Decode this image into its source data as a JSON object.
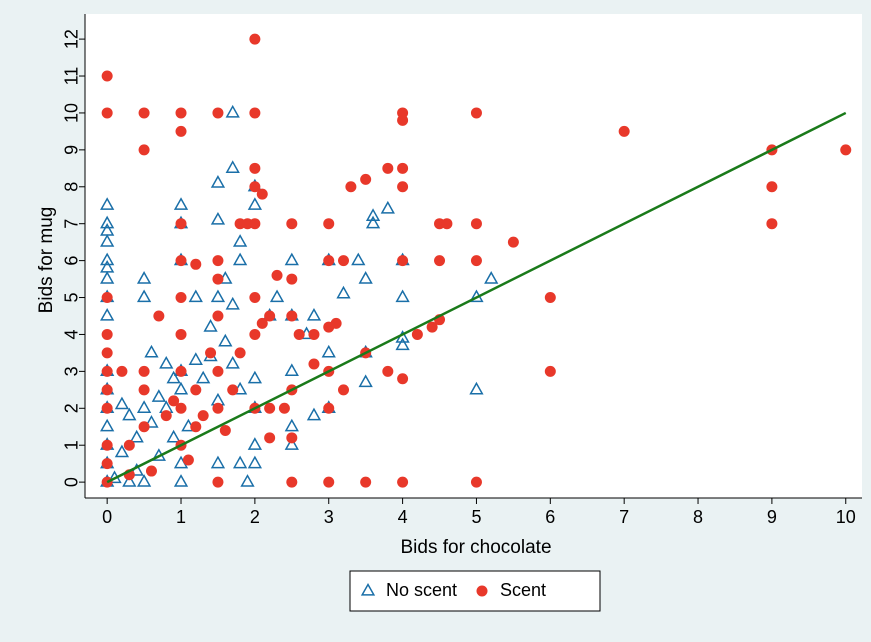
{
  "chart_data": {
    "type": "scatter",
    "x_label": "Bids for chocolate",
    "y_label": "Bids for mug",
    "xlim": [
      -0.3,
      10.22
    ],
    "ylim": [
      -0.43,
      12.68
    ],
    "xticks": [
      0,
      1,
      2,
      3,
      4,
      5,
      6,
      7,
      8,
      9,
      10
    ],
    "yticks": [
      0,
      1,
      2,
      3,
      4,
      5,
      6,
      7,
      8,
      9,
      10,
      11,
      12
    ],
    "grid": false,
    "legend": "bottom",
    "reference_line": {
      "x": [
        0,
        10
      ],
      "y": [
        0,
        10
      ],
      "color": "#1a7a1a"
    },
    "series": [
      {
        "name": "No scent",
        "color": "#1a6fa8",
        "marker": "triangle",
        "x": [
          1.7,
          0,
          0,
          0,
          0,
          0,
          0,
          0,
          0,
          0,
          0,
          0,
          0,
          0,
          0,
          0,
          0,
          1.7,
          1.5,
          2,
          2,
          1.5,
          1,
          1,
          1,
          0.5,
          0.5,
          1.8,
          1.8,
          1.6,
          1.5,
          1.2,
          2.5,
          2.5,
          2.3,
          3,
          3.2,
          3.5,
          3.6,
          3.8,
          3.6,
          4,
          4,
          4,
          4,
          5,
          5.2,
          5,
          3.5,
          3.5,
          3.4,
          3,
          3,
          2.8,
          2.5,
          2.5,
          2.5,
          2,
          2,
          2,
          1.9,
          1.8,
          1.5,
          1,
          1,
          0.5,
          0.3,
          0.1,
          0.2,
          0.4,
          0.6,
          0.8,
          1,
          1,
          1.2,
          1.3,
          1.4,
          1.6,
          1.7,
          1.8,
          2,
          2.2,
          2.8,
          2.7,
          0.5,
          0.7,
          0.9,
          1.1,
          0.3,
          0.2,
          0.7,
          0.4,
          0.6,
          0.8,
          1.4,
          1.7,
          0.9,
          1.5
        ],
        "values": [
          10,
          7.5,
          7,
          6.8,
          6.5,
          6,
          5.8,
          5.5,
          5,
          4.5,
          3,
          2.5,
          2,
          1.5,
          1,
          0.5,
          0,
          8.5,
          8.1,
          8,
          7.5,
          7.1,
          7.5,
          7,
          6,
          5.5,
          5,
          6.5,
          6,
          5.5,
          5,
          5,
          6,
          4.5,
          5,
          6,
          5.1,
          5.5,
          7.2,
          7.4,
          7,
          5,
          3.9,
          3.7,
          6,
          5,
          5.5,
          2.5,
          2.7,
          3.5,
          6,
          3.5,
          2,
          1.8,
          1,
          1.5,
          3,
          2,
          1,
          0.5,
          0,
          0.5,
          0.5,
          0,
          0.5,
          0,
          0,
          0.1,
          0.8,
          1.2,
          1.6,
          2,
          2.5,
          3,
          3.3,
          2.8,
          3.4,
          3.8,
          3.2,
          2.5,
          2.8,
          4.5,
          4.5,
          4,
          2,
          2.3,
          1.2,
          1.5,
          1.8,
          2.1,
          0.7,
          0.3,
          3.5,
          3.2,
          4.2,
          4.8,
          2.8,
          2.2
        ]
      },
      {
        "name": "Scent",
        "color": "#e8382a",
        "marker": "circle",
        "x": [
          0,
          0,
          0.5,
          1,
          1.5,
          2,
          2,
          0.5,
          1,
          4,
          4,
          5,
          7,
          9,
          10,
          9,
          9,
          6,
          6,
          5,
          4,
          3.5,
          3,
          2.5,
          1.5,
          1,
          1.5,
          2,
          2,
          2,
          3,
          3.3,
          3.5,
          3.8,
          4,
          4,
          4,
          4.5,
          4.6,
          5,
          5,
          5.5,
          4.5,
          4.2,
          4.5,
          4,
          3.8,
          4.4,
          3,
          3.2,
          2.5,
          2.5,
          3,
          3.1,
          2.8,
          2.5,
          2.3,
          2.2,
          2,
          1.8,
          1.5,
          1.2,
          1,
          1,
          0.5,
          0.5,
          0,
          0,
          0,
          0,
          0,
          0,
          0,
          0,
          0,
          0.2,
          0.3,
          0.5,
          0.8,
          1,
          1.2,
          1.5,
          1.7,
          2,
          2.2,
          2.4,
          2.5,
          2.5,
          2.2,
          3,
          3.2,
          3.5,
          3,
          2.8,
          2.6,
          1.8,
          1.9,
          2.1,
          1.5,
          1.2,
          1,
          1,
          1,
          0.7,
          1.5,
          2,
          2.1,
          1.4,
          0.9,
          1.3,
          1.6,
          1.1,
          0.6,
          0.3
        ],
        "values": [
          11,
          10,
          10,
          10,
          10,
          10,
          12,
          9,
          9.5,
          10,
          9.8,
          10,
          9.5,
          9,
          9,
          8,
          7,
          5,
          3,
          0,
          0,
          0,
          0,
          0,
          0,
          7,
          6,
          7,
          8.5,
          8,
          7,
          8,
          8.2,
          8.5,
          8.5,
          8,
          6,
          7,
          7,
          7,
          6,
          6.5,
          6,
          4,
          4.4,
          2.8,
          3,
          4.2,
          6,
          6,
          7,
          5.5,
          4.2,
          4.3,
          4,
          4.5,
          5.6,
          4.5,
          4,
          3.5,
          3,
          2.5,
          2,
          3,
          3,
          2.5,
          5,
          4,
          3.5,
          3,
          2.5,
          2,
          1,
          0.5,
          0,
          3,
          1,
          1.5,
          1.8,
          1,
          1.5,
          2,
          2.5,
          2,
          2,
          2,
          2.5,
          1.2,
          1.2,
          2,
          2.5,
          3.5,
          3,
          3.2,
          4,
          7,
          7,
          7.8,
          5.5,
          5.9,
          6,
          5,
          4,
          4.5,
          4.5,
          5,
          4.3,
          3.5,
          2.2,
          1.8,
          1.4,
          0.6,
          0.3,
          0.2
        ]
      }
    ]
  }
}
